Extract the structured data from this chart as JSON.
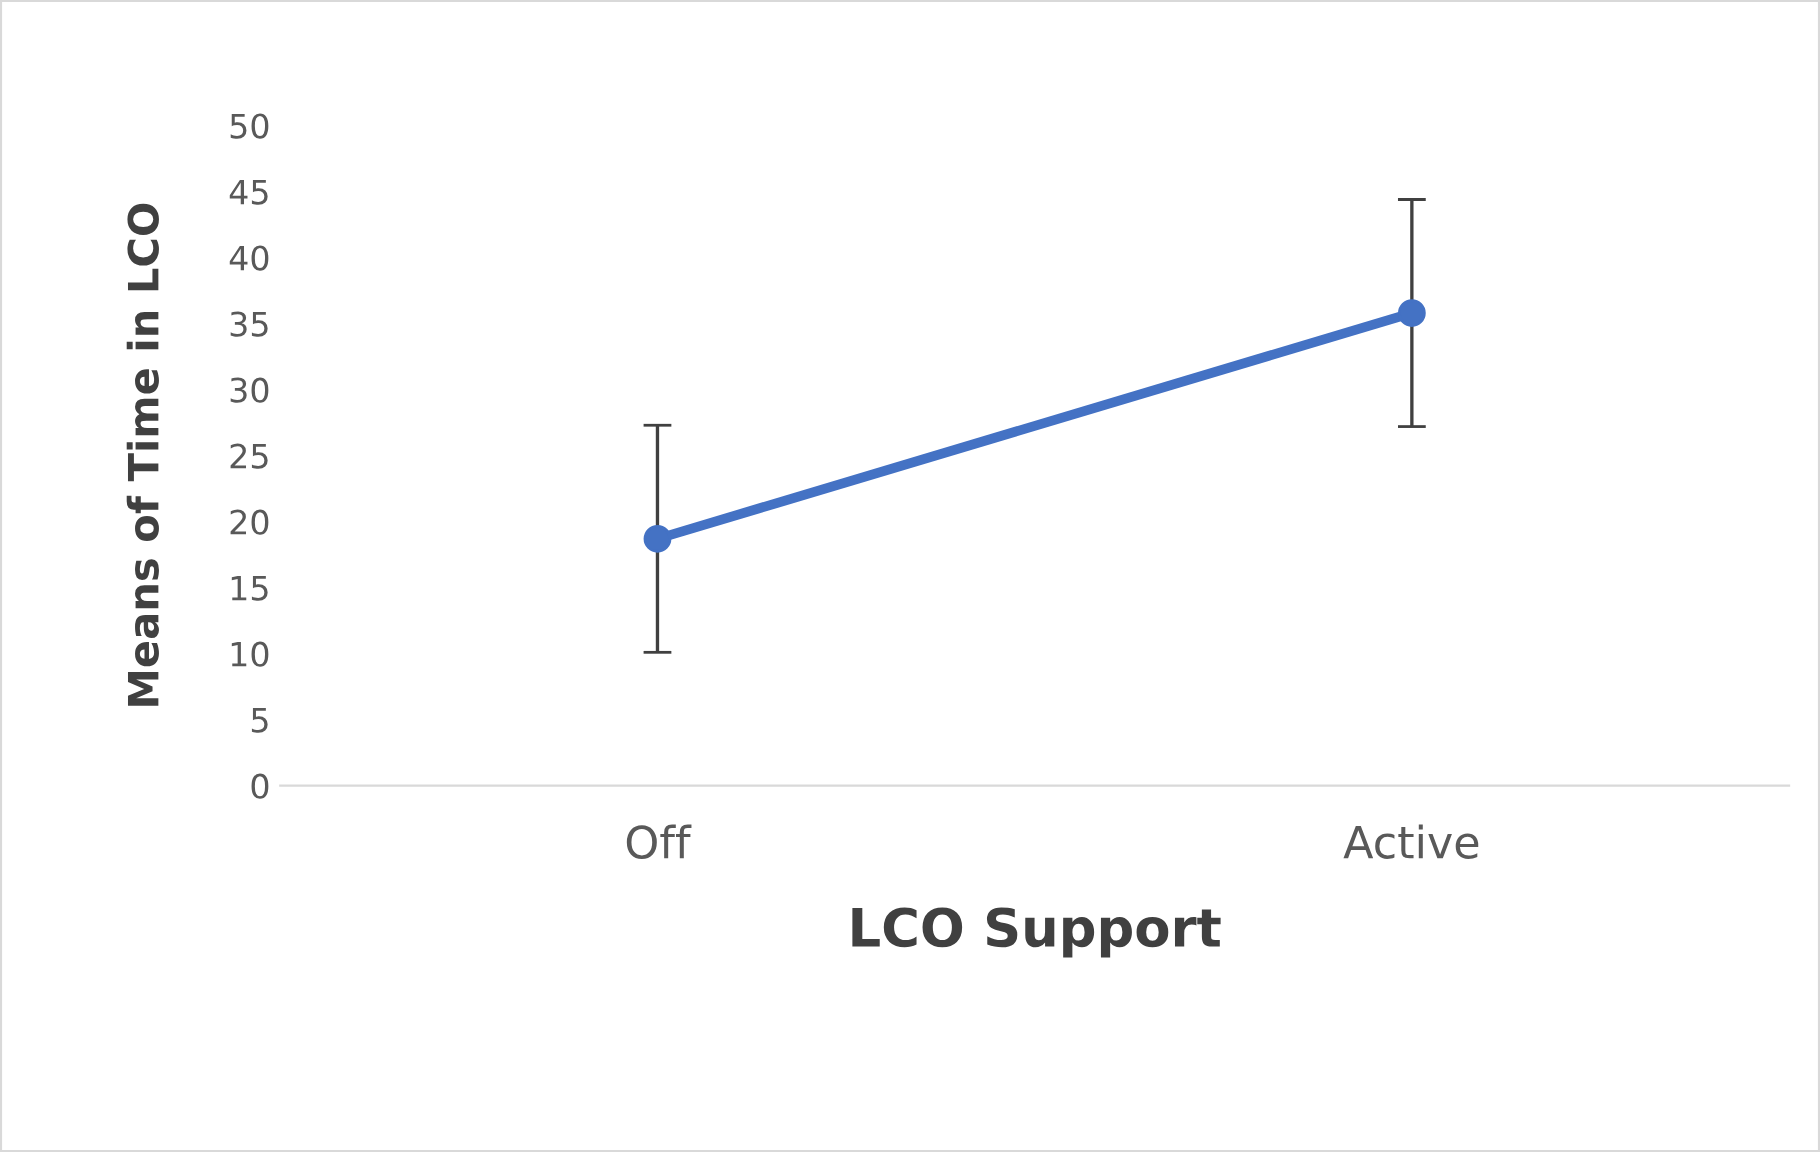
{
  "chart_data": {
    "type": "line",
    "xlabel": "LCO Support",
    "ylabel": "Means of Time in LCO",
    "categories": [
      "Off",
      "Active"
    ],
    "series": [
      {
        "color": "#4472c4",
        "values": [
          18.7,
          35.8
        ],
        "errors": [
          8.6,
          8.6
        ]
      }
    ],
    "ylim": [
      0,
      50
    ],
    "yticks": [
      0,
      5,
      10,
      15,
      20,
      25,
      30,
      35,
      40,
      45,
      50
    ],
    "grid": false,
    "legend": false,
    "marker": "circle",
    "line_style": "solid"
  }
}
